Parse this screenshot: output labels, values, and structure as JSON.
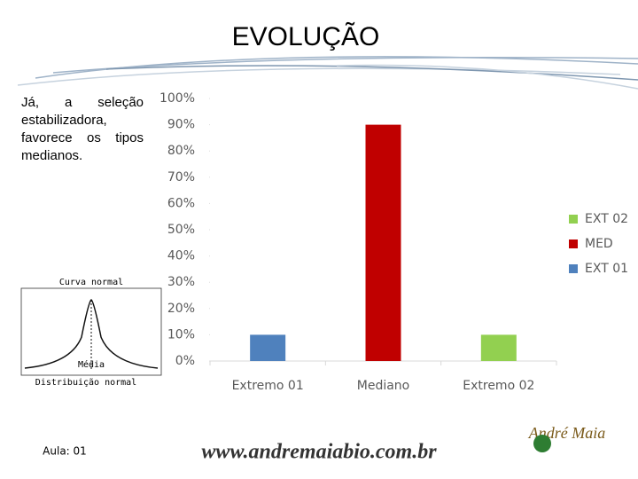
{
  "header": {
    "title": "EVOLUÇÃO"
  },
  "body": {
    "text": "Já, a seleção estabilizadora, favorece os tipos medianos."
  },
  "figure": {
    "title": "Curva normal",
    "mean_label": "Média",
    "caption": "Distribuição normal"
  },
  "footer": {
    "lesson": "Aula: 01",
    "website": "www.andremaiabio.com.br",
    "logo": "André Maia"
  },
  "chart_data": {
    "type": "bar",
    "categories": [
      "Extremo 01",
      "Mediano",
      "Extremo 02"
    ],
    "series": [
      {
        "name": "EXT 01",
        "color": "#4f81bd",
        "values": [
          10,
          null,
          null
        ]
      },
      {
        "name": "MED",
        "color": "#c00000",
        "values": [
          null,
          90,
          null
        ]
      },
      {
        "name": "EXT 02",
        "color": "#92d050",
        "values": [
          null,
          null,
          10
        ]
      }
    ],
    "ylim": [
      0,
      100
    ],
    "yticks": [
      {
        "value": 0,
        "label": "0%"
      },
      {
        "value": 10,
        "label": "10%"
      },
      {
        "value": 20,
        "label": "20%"
      },
      {
        "value": 30,
        "label": "30%"
      },
      {
        "value": 40,
        "label": "40%"
      },
      {
        "value": 50,
        "label": "50%"
      },
      {
        "value": 60,
        "label": "60%"
      },
      {
        "value": 70,
        "label": "70%"
      },
      {
        "value": 80,
        "label": "80%"
      },
      {
        "value": 90,
        "label": "90%"
      },
      {
        "value": 100,
        "label": "100%"
      }
    ],
    "grid": false,
    "legend": "right"
  }
}
